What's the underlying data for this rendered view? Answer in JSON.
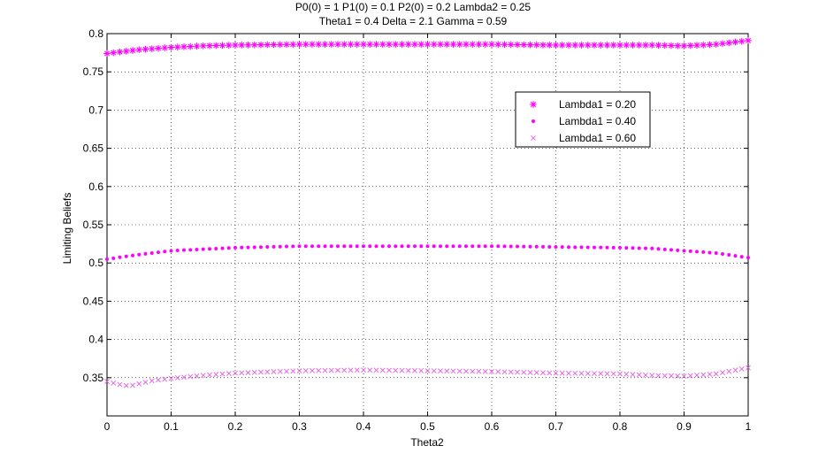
{
  "chart_data": {
    "type": "scatter",
    "title_lines": [
      "P0(0) = 1 P1(0) = 0.1 P2(0) = 0.2 Lambda2 = 0.25",
      "Theta1 = 0.4 Delta = 2.1 Gamma = 0.59"
    ],
    "xlabel": "Theta2",
    "ylabel": "Limiting Beliefs",
    "xlim": [
      0,
      1
    ],
    "ylim": [
      0.3,
      0.8
    ],
    "xticks": [
      0,
      0.1,
      0.2,
      0.3,
      0.4,
      0.5,
      0.6,
      0.7,
      0.8,
      0.9,
      1
    ],
    "xtick_labels": [
      "0",
      "0.1",
      "0.2",
      "0.3",
      "0.4",
      "0.5",
      "0.6",
      "0.7",
      "0.8",
      "0.9",
      "1"
    ],
    "yticks": [
      0.35,
      0.4,
      0.45,
      0.5,
      0.55,
      0.6,
      0.65,
      0.7,
      0.75,
      0.8
    ],
    "ytick_labels": [
      "0.35",
      "0.4",
      "0.45",
      "0.5",
      "0.55",
      "0.6",
      "0.65",
      "0.7",
      "0.75",
      "0.8"
    ],
    "grid": true,
    "legend_position": "upper-right",
    "x_step": 0.01,
    "series": [
      {
        "name": "Lambda1 = 0.20",
        "marker": "asterisk",
        "color": "#ff00ff",
        "profile": {
          "x": [
            0,
            0.05,
            0.1,
            0.15,
            0.2,
            0.3,
            0.4,
            0.5,
            0.6,
            0.7,
            0.8,
            0.85,
            0.9,
            0.95,
            1
          ],
          "y": [
            0.774,
            0.779,
            0.782,
            0.784,
            0.785,
            0.786,
            0.786,
            0.786,
            0.786,
            0.785,
            0.785,
            0.785,
            0.784,
            0.786,
            0.791
          ]
        }
      },
      {
        "name": "Lambda1 = 0.40",
        "marker": "dot",
        "color": "#ff00ff",
        "profile": {
          "x": [
            0,
            0.05,
            0.1,
            0.15,
            0.2,
            0.3,
            0.4,
            0.5,
            0.6,
            0.7,
            0.8,
            0.85,
            0.9,
            0.95,
            1
          ],
          "y": [
            0.505,
            0.511,
            0.516,
            0.518,
            0.52,
            0.522,
            0.522,
            0.522,
            0.522,
            0.521,
            0.52,
            0.519,
            0.516,
            0.513,
            0.507
          ]
        }
      },
      {
        "name": "Lambda1 = 0.60",
        "marker": "cross",
        "color": "#e65ce6",
        "profile": {
          "x": [
            0,
            0.02,
            0.035,
            0.05,
            0.07,
            0.1,
            0.15,
            0.2,
            0.3,
            0.4,
            0.5,
            0.6,
            0.7,
            0.8,
            0.85,
            0.9,
            0.95,
            1
          ],
          "y": [
            0.345,
            0.341,
            0.339,
            0.342,
            0.346,
            0.349,
            0.353,
            0.356,
            0.359,
            0.36,
            0.359,
            0.358,
            0.356,
            0.355,
            0.353,
            0.352,
            0.355,
            0.363
          ]
        }
      }
    ]
  }
}
